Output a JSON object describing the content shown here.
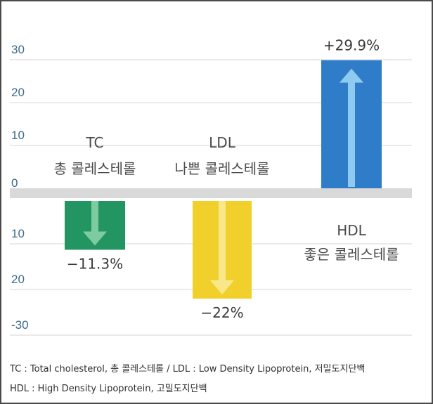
{
  "chart_data": {
    "type": "bar",
    "categories": [
      "TC",
      "LDL",
      "HDL"
    ],
    "category_subtitles": [
      "총 콜레스테롤",
      "나쁜 콜레스테롤",
      "좋은 콜레스테롤"
    ],
    "values": [
      -11.3,
      -22,
      29.9
    ],
    "value_labels": [
      "−11.3%",
      "−22%",
      "+29.9%"
    ],
    "colors": [
      "#239562",
      "#f2d02b",
      "#2f7dc8"
    ],
    "arrow_colors": [
      "#7ecba0",
      "#f9e789",
      "#8fcbf0"
    ],
    "y_ticks": [
      {
        "value": 30,
        "label": "30"
      },
      {
        "value": 20,
        "label": "20"
      },
      {
        "value": 10,
        "label": "10"
      },
      {
        "value": 0,
        "label": "0"
      },
      {
        "value": -10,
        "label": "10"
      },
      {
        "value": -20,
        "label": "20"
      },
      {
        "value": -30,
        "label": "-30"
      }
    ],
    "ylim": [
      -30,
      30
    ],
    "grid": true,
    "tick_color": "#3c6b87",
    "grid_color": "#e3e3e3",
    "baseline_color": "#d9d9d9"
  },
  "footnotes": [
    "TC : Total cholesterol, 총 콜레스테롤 / LDL : Low Density Lipoprotein, 저밀도지단백",
    "HDL : High Density Lipoprotein, 고밀도지단백"
  ]
}
